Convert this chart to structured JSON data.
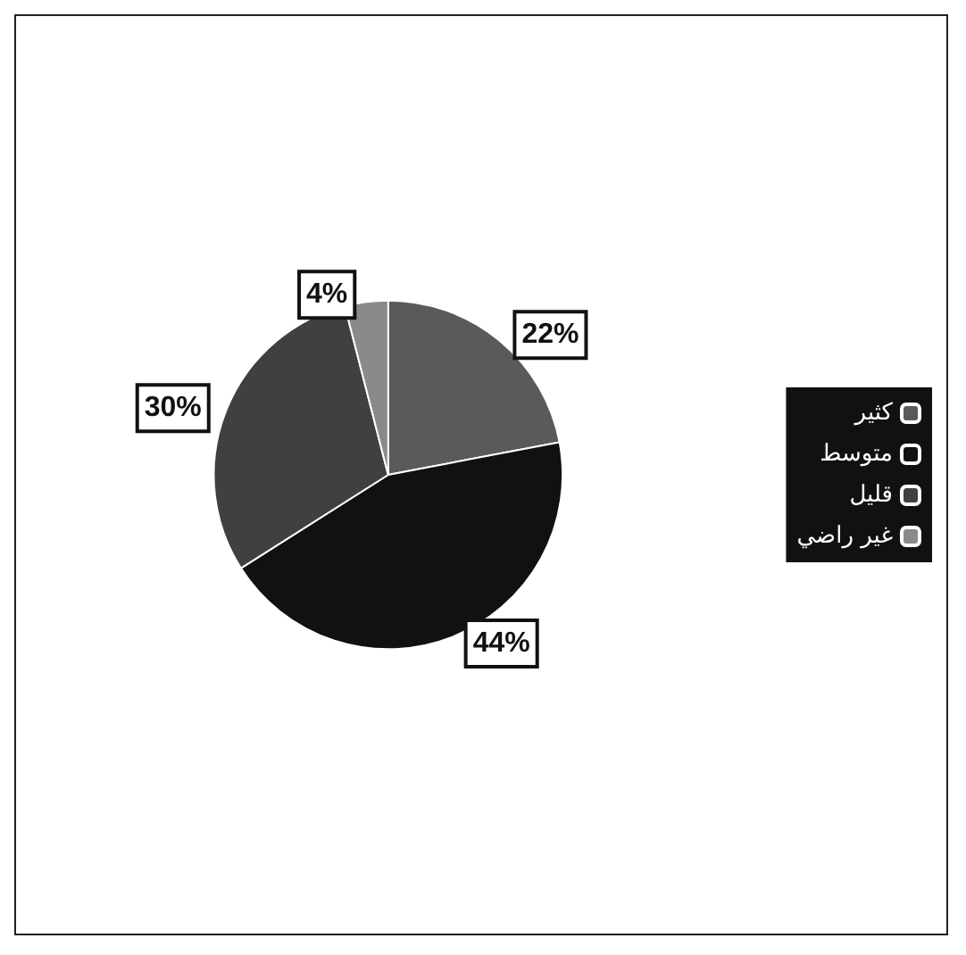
{
  "chart_data": {
    "type": "pie",
    "categories": [
      "كثير",
      "متوسط",
      "قليل",
      "غير راضي"
    ],
    "values": [
      22,
      44,
      30,
      4
    ],
    "value_labels": [
      "22%",
      "44%",
      "30%",
      "4%"
    ],
    "colors": [
      "#5a5a5a",
      "#111111",
      "#404040",
      "#8a8a8a"
    ],
    "legend": "right"
  }
}
